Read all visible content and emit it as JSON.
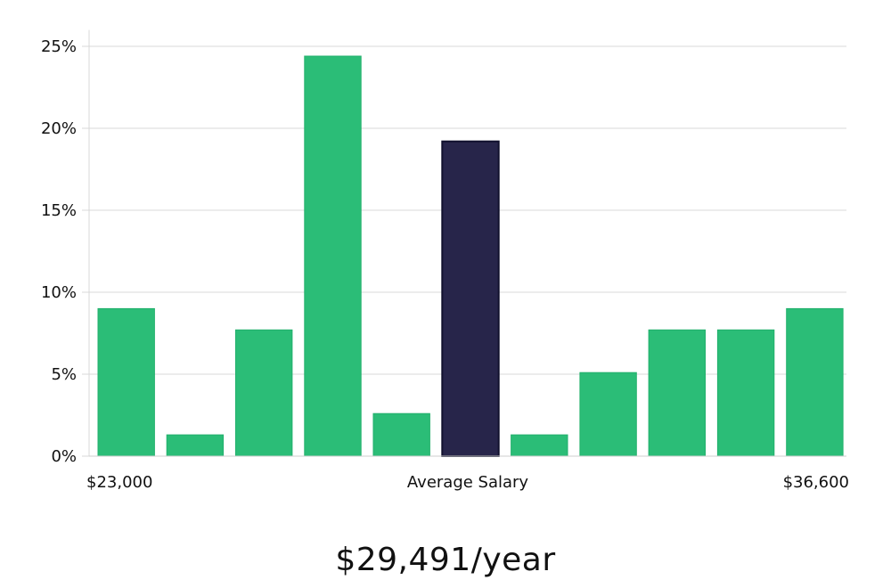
{
  "chart_data": {
    "type": "bar",
    "y_ticks": [
      "0%",
      "5%",
      "10%",
      "15%",
      "20%",
      "25%"
    ],
    "y_tick_values": [
      0,
      5,
      10,
      15,
      20,
      25
    ],
    "ylim": [
      0,
      26
    ],
    "values": [
      9.0,
      1.3,
      7.7,
      24.4,
      2.6,
      19.2,
      1.3,
      5.1,
      7.7,
      7.7,
      9.0
    ],
    "highlight_index": 5,
    "grid": true,
    "x_min_label": "$23,000",
    "x_center_label": "Average Salary",
    "x_max_label": "$36,600",
    "colors": {
      "bar": "#2bbd77",
      "highlight": "#27254a",
      "highlight_border": "#11112e",
      "grid": "#d9d9d9"
    }
  },
  "salary_text": "$29,491/year"
}
